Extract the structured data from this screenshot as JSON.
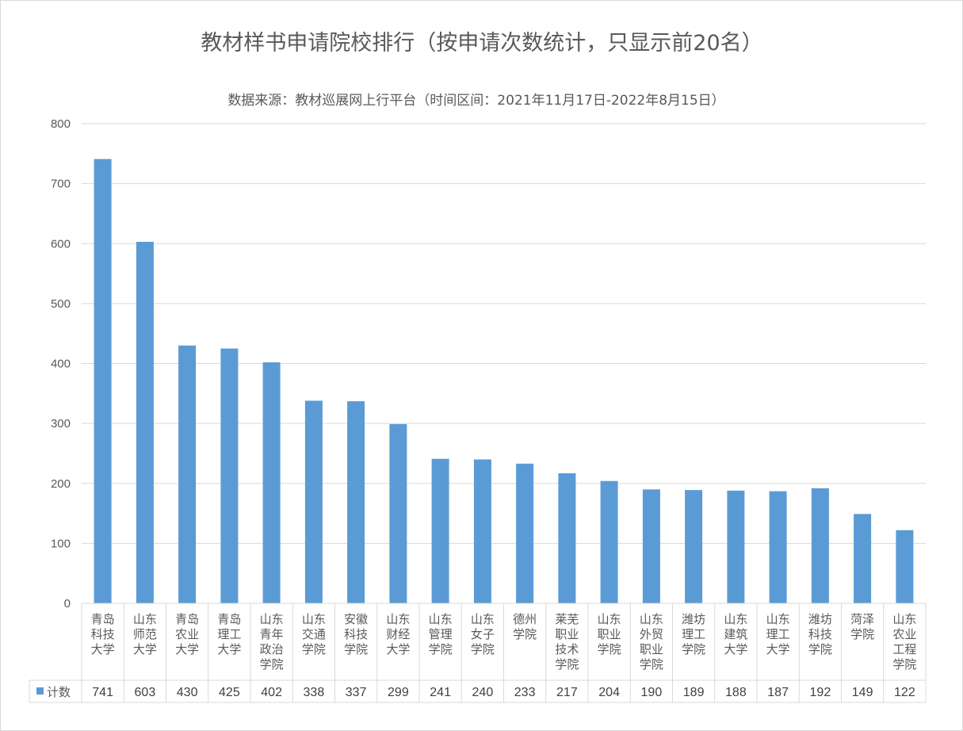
{
  "chart_data": {
    "type": "bar",
    "title": "教材样书申请院校排行（按申请次数统计，只显示前20名）",
    "subtitle": "数据来源：教材巡展网上行平台（时间区间：2021年11月17日-2022年8月15日）",
    "ylim": [
      0,
      800
    ],
    "yticks": [
      "0",
      "100",
      "200",
      "300",
      "400",
      "500",
      "600",
      "700",
      "800"
    ],
    "grid": true,
    "legend_placement": "data-table-left",
    "bar_color": "#5b9bd5",
    "grid_color": "#d9d9d9",
    "categories": [
      [
        "青岛",
        "科技",
        "大学"
      ],
      [
        "山东",
        "师范",
        "大学"
      ],
      [
        "青岛",
        "农业",
        "大学"
      ],
      [
        "青岛",
        "理工",
        "大学"
      ],
      [
        "山东",
        "青年",
        "政治",
        "学院"
      ],
      [
        "山东",
        "交通",
        "学院"
      ],
      [
        "安徽",
        "科技",
        "学院"
      ],
      [
        "山东",
        "财经",
        "大学"
      ],
      [
        "山东",
        "管理",
        "学院"
      ],
      [
        "山东",
        "女子",
        "学院"
      ],
      [
        "德州",
        "学院"
      ],
      [
        "莱芜",
        "职业",
        "技术",
        "学院"
      ],
      [
        "山东",
        "职业",
        "学院"
      ],
      [
        "山东",
        "外贸",
        "职业",
        "学院"
      ],
      [
        "潍坊",
        "理工",
        "学院"
      ],
      [
        "山东",
        "建筑",
        "大学"
      ],
      [
        "山东",
        "理工",
        "大学"
      ],
      [
        "潍坊",
        "科技",
        "学院"
      ],
      [
        "菏泽",
        "学院"
      ],
      [
        "山东",
        "农业",
        "工程",
        "学院"
      ]
    ],
    "series": [
      {
        "name": "计数",
        "values": [
          741,
          603,
          430,
          425,
          402,
          338,
          337,
          299,
          241,
          240,
          233,
          217,
          204,
          190,
          189,
          188,
          187,
          192,
          149,
          122
        ]
      }
    ]
  }
}
